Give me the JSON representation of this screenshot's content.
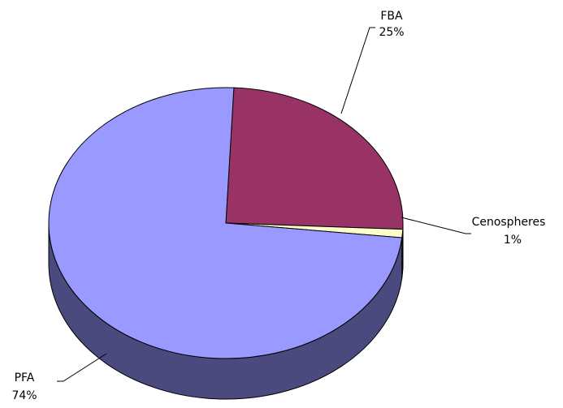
{
  "chart_data": {
    "type": "pie",
    "style": "3d",
    "slices": [
      {
        "name": "FBA",
        "label": "FBA",
        "value_label": "25%",
        "value": 25,
        "color": "#993366",
        "side_color": "#662244"
      },
      {
        "name": "Cenospheres",
        "label": "Cenospheres",
        "value_label": "1%",
        "value": 1,
        "color": "#FFFFCC",
        "side_color": "#B3B38F"
      },
      {
        "name": "PFA",
        "label": "PFA",
        "value_label": "74%",
        "value": 74,
        "color": "#9999FF",
        "side_color": "#4A4A7F"
      }
    ],
    "legend": "none",
    "title": ""
  }
}
